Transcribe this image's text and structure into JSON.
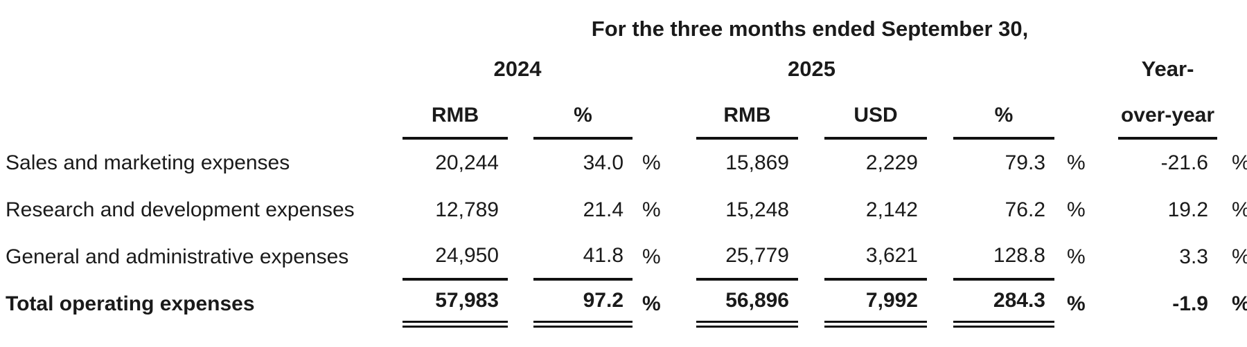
{
  "colors": {
    "text": "#1a1a1a",
    "rule": "#111111",
    "background": "#ffffff"
  },
  "table": {
    "title": "For the three months ended September 30,",
    "column_groups": {
      "y2024": "2024",
      "y2025": "2025",
      "yoy_line1": "Year-"
    },
    "sub_headers": {
      "rmb_2024": "RMB",
      "pct_2024": "%",
      "rmb_2025": "RMB",
      "usd_2025": "USD",
      "pct_2025": "%",
      "yoy_line2": "over-year"
    },
    "percent_sign": "%",
    "rows": [
      {
        "label": "Sales and marketing expenses",
        "rmb2024": "20,244",
        "pct2024": "34.0",
        "rmb2025": "15,869",
        "usd2025": "2,229",
        "pct2025": "79.3",
        "yoy": "-21.6"
      },
      {
        "label": "Research and development expenses",
        "rmb2024": "12,789",
        "pct2024": "21.4",
        "rmb2025": "15,248",
        "usd2025": "2,142",
        "pct2025": "76.2",
        "yoy": "19.2"
      },
      {
        "label": "General and administrative expenses",
        "rmb2024": "24,950",
        "pct2024": "41.8",
        "rmb2025": "25,779",
        "usd2025": "3,621",
        "pct2025": "128.8",
        "yoy": "3.3"
      }
    ],
    "total": {
      "label": "Total operating expenses",
      "rmb2024": "57,983",
      "pct2024": "97.2",
      "rmb2025": "56,896",
      "usd2025": "7,992",
      "pct2025": "284.3",
      "yoy": "-1.9"
    }
  }
}
